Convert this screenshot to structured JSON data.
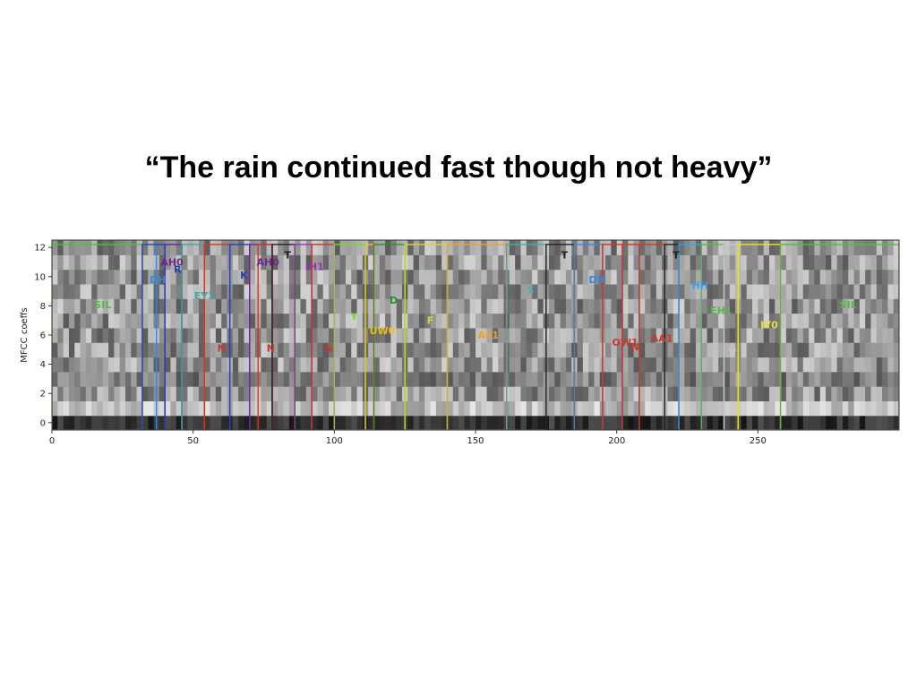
{
  "slide": {
    "title": "“The rain continued fast though not heavy”"
  },
  "chart_data": {
    "type": "heatmap",
    "title": "",
    "xlabel": "",
    "ylabel": "MFCC coeffs",
    "xlim": [
      0,
      300
    ],
    "ylim": [
      -0.5,
      12.5
    ],
    "x_ticks": [
      "0",
      "50",
      "100",
      "150",
      "200",
      "250"
    ],
    "y_ticks": [
      "0",
      "2",
      "4",
      "6",
      "8",
      "10",
      "12"
    ],
    "grid": false,
    "colormap": "grayscale",
    "segments": [
      {
        "label": "SIL",
        "start": 0,
        "end": 32,
        "label_x": 18,
        "label_y": 8.1,
        "color": "#56b947"
      },
      {
        "label": "DH",
        "start": 37,
        "end": 46,
        "label_x": 37.5,
        "label_y": 9.8,
        "color": "#3a86d8"
      },
      {
        "label": "AH0",
        "start": 40,
        "end": 46,
        "label_x": 42.5,
        "label_y": 11.0,
        "color": "#6a2a8c"
      },
      {
        "label": "R",
        "start": 32,
        "end": 40,
        "label_x": 44.5,
        "label_y": 10.5,
        "color": "#2f3fa8"
      },
      {
        "label": "EY1",
        "start": 46,
        "end": 54,
        "label_x": 54,
        "label_y": 8.7,
        "color": "#3ea89a"
      },
      {
        "label": "N",
        "start": 54,
        "end": 63,
        "label_x": 60,
        "label_y": 5.1,
        "color": "#c23b2e"
      },
      {
        "label": "K",
        "start": 63,
        "end": 70,
        "label_x": 68,
        "label_y": 10.1,
        "color": "#2f3fa8"
      },
      {
        "label": "AH0",
        "start": 70,
        "end": 78,
        "label_x": 76.5,
        "label_y": 11.0,
        "color": "#6a2a8c"
      },
      {
        "label": "N",
        "start": 73,
        "end": 78,
        "label_x": 77.5,
        "label_y": 5.1,
        "color": "#c23b2e"
      },
      {
        "label": "T",
        "start": 78,
        "end": 86,
        "label_x": 83.5,
        "label_y": 11.5,
        "color": "#222222"
      },
      {
        "label": "IH1",
        "start": 86,
        "end": 92,
        "label_x": 93,
        "label_y": 10.7,
        "color": "#8e3aa8"
      },
      {
        "label": "N",
        "start": 92,
        "end": 100,
        "label_x": 98,
        "label_y": 5.1,
        "color": "#c23b2e"
      },
      {
        "label": "Y",
        "start": 100,
        "end": 111,
        "label_x": 107,
        "label_y": 7.3,
        "color": "#7cd23a"
      },
      {
        "label": "UW0",
        "start": 111,
        "end": 114,
        "label_x": 117,
        "label_y": 6.3,
        "color": "#e8c020"
      },
      {
        "label": "D",
        "start": 114,
        "end": 125,
        "label_x": 121,
        "label_y": 8.4,
        "color": "#2e8a3a"
      },
      {
        "label": "F",
        "start": 125,
        "end": 140,
        "label_x": 134,
        "label_y": 7.0,
        "color": "#d4d43a"
      },
      {
        "label": "AE1",
        "start": 140,
        "end": 161,
        "label_x": 154.5,
        "label_y": 6.0,
        "color": "#f0a030"
      },
      {
        "label": "S",
        "start": 161,
        "end": 175,
        "label_x": 169.5,
        "label_y": 9.1,
        "color": "#4aaaa8"
      },
      {
        "label": "T",
        "start": 175,
        "end": 185,
        "label_x": 181.5,
        "label_y": 11.5,
        "color": "#222222"
      },
      {
        "label": "DH",
        "start": 185,
        "end": 195,
        "label_x": 193,
        "label_y": 9.8,
        "color": "#3a86d8"
      },
      {
        "label": "OW1",
        "start": 195,
        "end": 202,
        "label_x": 203,
        "label_y": 5.5,
        "color": "#c23b2e"
      },
      {
        "label": "N",
        "start": 202,
        "end": 208,
        "label_x": 206.5,
        "label_y": 5.2,
        "color": "#c23b2e"
      },
      {
        "label": "AA1",
        "start": 208,
        "end": 217,
        "label_x": 216,
        "label_y": 5.8,
        "color": "#c23b2e"
      },
      {
        "label": "T",
        "start": 217,
        "end": 222,
        "label_x": 221,
        "label_y": 11.5,
        "color": "#222222"
      },
      {
        "label": "HH",
        "start": 222,
        "end": 230,
        "label_x": 229.5,
        "label_y": 9.4,
        "color": "#3aa0e0"
      },
      {
        "label": "EH1",
        "start": 230,
        "end": 238,
        "label_x": 237,
        "label_y": 7.7,
        "color": "#56b947"
      },
      {
        "label": "V",
        "start": 238,
        "end": 243,
        "label_x": 241,
        "label_y": 4.8,
        "color": "#c8c8c8"
      },
      {
        "label": "IY0",
        "start": 243,
        "end": 258,
        "label_x": 254,
        "label_y": 6.7,
        "color": "#e8e030"
      },
      {
        "label": "SIL",
        "start": 258,
        "end": 300,
        "label_x": 282,
        "label_y": 8.1,
        "color": "#56b947"
      }
    ]
  }
}
